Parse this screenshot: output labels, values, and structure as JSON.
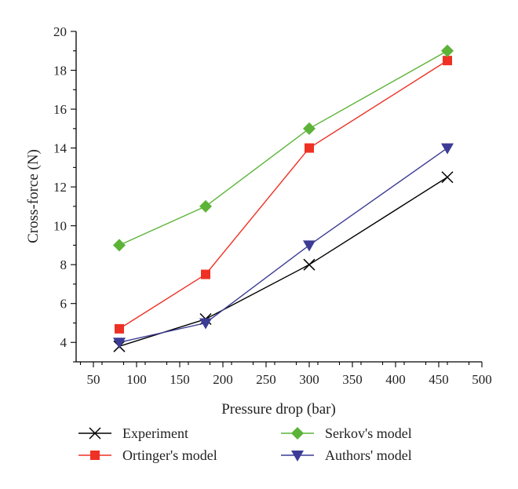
{
  "chart_data": {
    "type": "line",
    "xlabel": "Pressure drop (bar)",
    "ylabel": "Cross-force (N)",
    "xlim": [
      30,
      500
    ],
    "ylim": [
      3,
      20
    ],
    "xticks": [
      50,
      100,
      150,
      200,
      250,
      300,
      350,
      400,
      450,
      500
    ],
    "yticks": [
      4,
      6,
      8,
      10,
      12,
      14,
      16,
      18,
      20
    ],
    "grid": false,
    "legend_position": "bottom",
    "series": [
      {
        "name": "Experiment",
        "color": "#000000",
        "marker": "x-icon",
        "x": [
          80,
          180,
          300,
          460
        ],
        "y": [
          3.8,
          5.2,
          8.0,
          12.5
        ]
      },
      {
        "name": "Ortinger's model",
        "color": "#ee3124",
        "marker": "square-icon",
        "x": [
          80,
          180,
          300,
          460
        ],
        "y": [
          4.7,
          7.5,
          14.0,
          18.5
        ]
      },
      {
        "name": "Serkov's model",
        "color": "#5cb338",
        "marker": "diamond-icon",
        "x": [
          80,
          180,
          300,
          460
        ],
        "y": [
          9.0,
          11.0,
          15.0,
          19.0
        ]
      },
      {
        "name": "Authors' model",
        "color": "#3c3c96",
        "marker": "triangle-down-icon",
        "x": [
          80,
          180,
          300,
          460
        ],
        "y": [
          4.0,
          5.0,
          9.0,
          14.0
        ]
      }
    ]
  }
}
